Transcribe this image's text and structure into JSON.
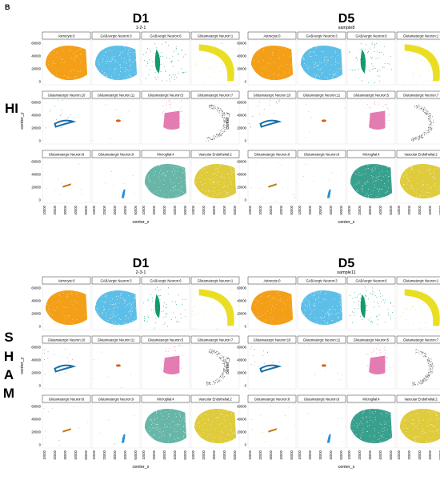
{
  "figure_label": "B",
  "conditions": [
    "HI",
    "SHAM"
  ],
  "sham_letters": [
    "S",
    "H",
    "A",
    "M"
  ],
  "colors": {
    "Astrocyte:0": "#f39a0c",
    "GABAergic Neuron:3": "#27a9df",
    "GABAergic Neuron:6": "#139a6e",
    "Glutamatergic Neuron:1": "#e9dc18",
    "Glutamatergic Neuron:10": "#1a6ea8",
    "Glutamatergic Neuron:11": "#d65e12",
    "Glutamatergic Neuron:5": "#e06fa8",
    "Glutamatergic Neuron:7": "#6b6b6b",
    "Glutamatergic Neuron:8": "#c07a10",
    "Glutamatergic Neuron:9": "#2790d8",
    "Microglial:4": "#168f7a",
    "Vascular Endothelial:2": "#d9c21a"
  },
  "cell_types": [
    [
      "Astrocyte:0",
      "GABAergic Neuron:3",
      "GABAergic Neuron:6",
      "Glutamatergic Neuron:1"
    ],
    [
      "Glutamatergic Neuron:10",
      "Glutamatergic Neuron:11",
      "Glutamatergic Neuron:5",
      "Glutamatergic Neuron:7"
    ],
    [
      "Glutamatergic Neuron:8",
      "Glutamatergic Neuron:9",
      "Microglial:4",
      "Vascular Endothelial:2"
    ]
  ],
  "y_ticks": [
    "60000",
    "40000",
    "20000",
    "0"
  ],
  "x_ticks": [
    "10000",
    "20000",
    "30000",
    "40000",
    "50000"
  ],
  "y_axis_label": "center_y",
  "x_axis_label": "center_x",
  "blocks": [
    {
      "title": "D1",
      "sample": "1-2-1",
      "shows_y_label": true
    },
    {
      "title": "D5",
      "sample": "sample8",
      "shows_y_label": false
    },
    {
      "title": "D1",
      "sample": "2-3-1",
      "shows_y_label": true
    },
    {
      "title": "D5",
      "sample": "sample11",
      "shows_y_label": false
    }
  ]
}
